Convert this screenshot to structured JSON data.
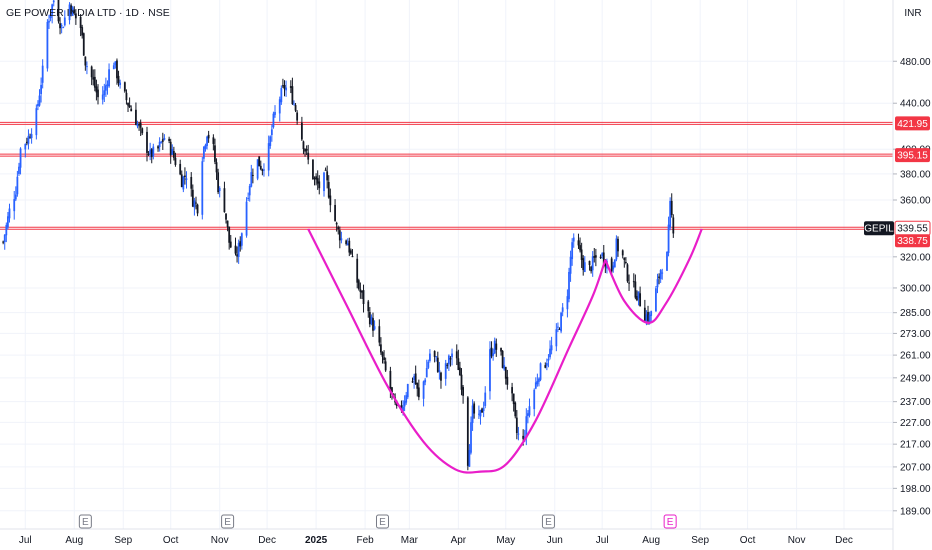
{
  "header": {
    "title": "GE POWER INDIA LTD · 1D · NSE",
    "currency": "INR"
  },
  "chart_data": {
    "type": "candlestick",
    "scale": "log",
    "x_labels": [
      {
        "label": "Jul",
        "date": "2024-07-01"
      },
      {
        "label": "Aug",
        "date": "2024-08-01"
      },
      {
        "label": "Sep",
        "date": "2024-09-01"
      },
      {
        "label": "Oct",
        "date": "2024-10-01"
      },
      {
        "label": "Nov",
        "date": "2024-11-01"
      },
      {
        "label": "Dec",
        "date": "2024-12-01"
      },
      {
        "label": "2025",
        "date": "2025-01-01"
      },
      {
        "label": "Feb",
        "date": "2025-02-01"
      },
      {
        "label": "Mar",
        "date": "2025-03-01"
      },
      {
        "label": "Apr",
        "date": "2025-04-01"
      },
      {
        "label": "May",
        "date": "2025-05-01"
      },
      {
        "label": "Jun",
        "date": "2025-06-01"
      },
      {
        "label": "Jul",
        "date": "2025-07-01"
      },
      {
        "label": "Aug",
        "date": "2025-08-01"
      },
      {
        "label": "Sep",
        "date": "2025-09-01"
      },
      {
        "label": "Oct",
        "date": "2025-10-01"
      },
      {
        "label": "Nov",
        "date": "2025-11-01"
      },
      {
        "label": "Dec",
        "date": "2025-12-01"
      }
    ],
    "y_ticks": [
      "480.00",
      "440.00",
      "400.00",
      "380.00",
      "360.00",
      "320.00",
      "300.00",
      "285.00",
      "273.00",
      "261.00",
      "249.00",
      "237.00",
      "227.00",
      "217.00",
      "207.00",
      "198.00",
      "189.00"
    ],
    "y_range": [
      182,
      545
    ],
    "x_range": [
      "2024-06-15",
      "2026-01-01"
    ],
    "hlines": [
      {
        "value": 421.95,
        "label": "421.95",
        "color": "#f23645"
      },
      {
        "value": 395.15,
        "label": "395.15",
        "color": "#f23645"
      },
      {
        "value": 339.55,
        "label": "339.55",
        "color": "#f23645"
      }
    ],
    "last_price": {
      "symbol": "GEPIL",
      "value": 339.55,
      "prev_close": 338.75,
      "prev_label": "338.75"
    },
    "earnings_markers": [
      {
        "date": "2024-08-08",
        "label": "E",
        "style": "past"
      },
      {
        "date": "2024-11-06",
        "label": "E",
        "style": "past"
      },
      {
        "date": "2025-02-12",
        "label": "E",
        "style": "past"
      },
      {
        "date": "2025-05-28",
        "label": "E",
        "style": "past"
      },
      {
        "date": "2025-08-13",
        "label": "E",
        "style": "upcoming"
      }
    ],
    "cup_handle": {
      "color": "#e91ec9",
      "cup": [
        [
          "2024-12-27",
          339
        ],
        [
          "2025-01-20",
          290
        ],
        [
          "2025-02-15",
          245
        ],
        [
          "2025-03-10",
          218
        ],
        [
          "2025-03-30",
          206
        ],
        [
          "2025-04-15",
          205
        ],
        [
          "2025-05-01",
          208
        ],
        [
          "2025-05-20",
          228
        ],
        [
          "2025-06-10",
          265
        ],
        [
          "2025-06-25",
          295
        ],
        [
          "2025-07-03",
          318
        ]
      ],
      "handle": [
        [
          "2025-07-03",
          318
        ],
        [
          "2025-07-15",
          292
        ],
        [
          "2025-07-30",
          279
        ],
        [
          "2025-08-10",
          290
        ],
        [
          "2025-08-25",
          318
        ],
        [
          "2025-09-02",
          339
        ]
      ]
    },
    "price_path": [
      [
        "2024-06-17",
        330
      ],
      [
        "2024-06-21",
        352
      ],
      [
        "2024-06-25",
        368
      ],
      [
        "2024-06-28",
        400
      ],
      [
        "2024-07-03",
        410
      ],
      [
        "2024-07-08",
        430
      ],
      [
        "2024-07-12",
        470
      ],
      [
        "2024-07-15",
        520
      ],
      [
        "2024-07-19",
        545
      ],
      [
        "2024-07-24",
        515
      ],
      [
        "2024-07-29",
        540
      ],
      [
        "2024-08-02",
        525
      ],
      [
        "2024-08-05",
        515
      ],
      [
        "2024-08-08",
        480
      ],
      [
        "2024-08-13",
        460
      ],
      [
        "2024-08-16",
        445
      ],
      [
        "2024-08-20",
        450
      ],
      [
        "2024-08-23",
        470
      ],
      [
        "2024-08-26",
        480
      ],
      [
        "2024-08-30",
        455
      ],
      [
        "2024-09-04",
        440
      ],
      [
        "2024-09-09",
        425
      ],
      [
        "2024-09-13",
        410
      ],
      [
        "2024-09-18",
        395
      ],
      [
        "2024-09-23",
        400
      ],
      [
        "2024-09-27",
        410
      ],
      [
        "2024-10-01",
        400
      ],
      [
        "2024-10-04",
        390
      ],
      [
        "2024-10-08",
        375
      ],
      [
        "2024-10-11",
        380
      ],
      [
        "2024-10-15",
        360
      ],
      [
        "2024-10-18",
        355
      ],
      [
        "2024-10-21",
        395
      ],
      [
        "2024-10-24",
        415
      ],
      [
        "2024-10-28",
        400
      ],
      [
        "2024-10-31",
        370
      ],
      [
        "2024-11-04",
        355
      ],
      [
        "2024-11-07",
        330
      ],
      [
        "2024-11-11",
        318
      ],
      [
        "2024-11-14",
        330
      ],
      [
        "2024-11-18",
        360
      ],
      [
        "2024-11-21",
        380
      ],
      [
        "2024-11-25",
        390
      ],
      [
        "2024-11-28",
        385
      ],
      [
        "2024-12-02",
        400
      ],
      [
        "2024-12-05",
        425
      ],
      [
        "2024-12-09",
        445
      ],
      [
        "2024-12-12",
        455
      ],
      [
        "2024-12-16",
        450
      ],
      [
        "2024-12-19",
        435
      ],
      [
        "2024-12-23",
        410
      ],
      [
        "2024-12-27",
        390
      ],
      [
        "2024-12-31",
        375
      ],
      [
        "2025-01-03",
        370
      ],
      [
        "2025-01-07",
        378
      ],
      [
        "2025-01-10",
        360
      ],
      [
        "2025-01-14",
        340
      ],
      [
        "2025-01-17",
        332
      ],
      [
        "2025-01-21",
        330
      ],
      [
        "2025-01-24",
        316
      ],
      [
        "2025-01-28",
        300
      ],
      [
        "2025-01-31",
        292
      ],
      [
        "2025-02-04",
        282
      ],
      [
        "2025-02-07",
        275
      ],
      [
        "2025-02-11",
        262
      ],
      [
        "2025-02-14",
        252
      ],
      [
        "2025-02-18",
        240
      ],
      [
        "2025-02-21",
        232
      ],
      [
        "2025-02-25",
        236
      ],
      [
        "2025-02-28",
        245
      ],
      [
        "2025-03-04",
        250
      ],
      [
        "2025-03-07",
        238
      ],
      [
        "2025-03-11",
        250
      ],
      [
        "2025-03-14",
        262
      ],
      [
        "2025-03-18",
        258
      ],
      [
        "2025-03-21",
        248
      ],
      [
        "2025-03-25",
        256
      ],
      [
        "2025-03-28",
        262
      ],
      [
        "2025-04-01",
        255
      ],
      [
        "2025-04-04",
        242
      ],
      [
        "2025-04-07",
        210
      ],
      [
        "2025-04-10",
        232
      ],
      [
        "2025-04-14",
        228
      ],
      [
        "2025-04-17",
        236
      ],
      [
        "2025-04-21",
        262
      ],
      [
        "2025-04-24",
        266
      ],
      [
        "2025-04-28",
        260
      ],
      [
        "2025-05-01",
        250
      ],
      [
        "2025-05-05",
        238
      ],
      [
        "2025-05-08",
        222
      ],
      [
        "2025-05-12",
        218
      ],
      [
        "2025-05-15",
        232
      ],
      [
        "2025-05-19",
        243
      ],
      [
        "2025-05-22",
        252
      ],
      [
        "2025-05-26",
        257
      ],
      [
        "2025-05-29",
        263
      ],
      [
        "2025-06-02",
        272
      ],
      [
        "2025-06-05",
        282
      ],
      [
        "2025-06-09",
        298
      ],
      [
        "2025-06-12",
        330
      ],
      [
        "2025-06-16",
        325
      ],
      [
        "2025-06-19",
        315
      ],
      [
        "2025-06-23",
        312
      ],
      [
        "2025-06-26",
        318
      ],
      [
        "2025-06-30",
        322
      ],
      [
        "2025-07-03",
        318
      ],
      [
        "2025-07-07",
        312
      ],
      [
        "2025-07-10",
        328
      ],
      [
        "2025-07-14",
        320
      ],
      [
        "2025-07-17",
        308
      ],
      [
        "2025-07-21",
        300
      ],
      [
        "2025-07-24",
        294
      ],
      [
        "2025-07-28",
        284
      ],
      [
        "2025-07-31",
        282
      ],
      [
        "2025-08-04",
        298
      ],
      [
        "2025-08-07",
        312
      ],
      [
        "2025-08-11",
        320
      ],
      [
        "2025-08-13",
        355
      ],
      [
        "2025-08-15",
        340
      ]
    ]
  }
}
